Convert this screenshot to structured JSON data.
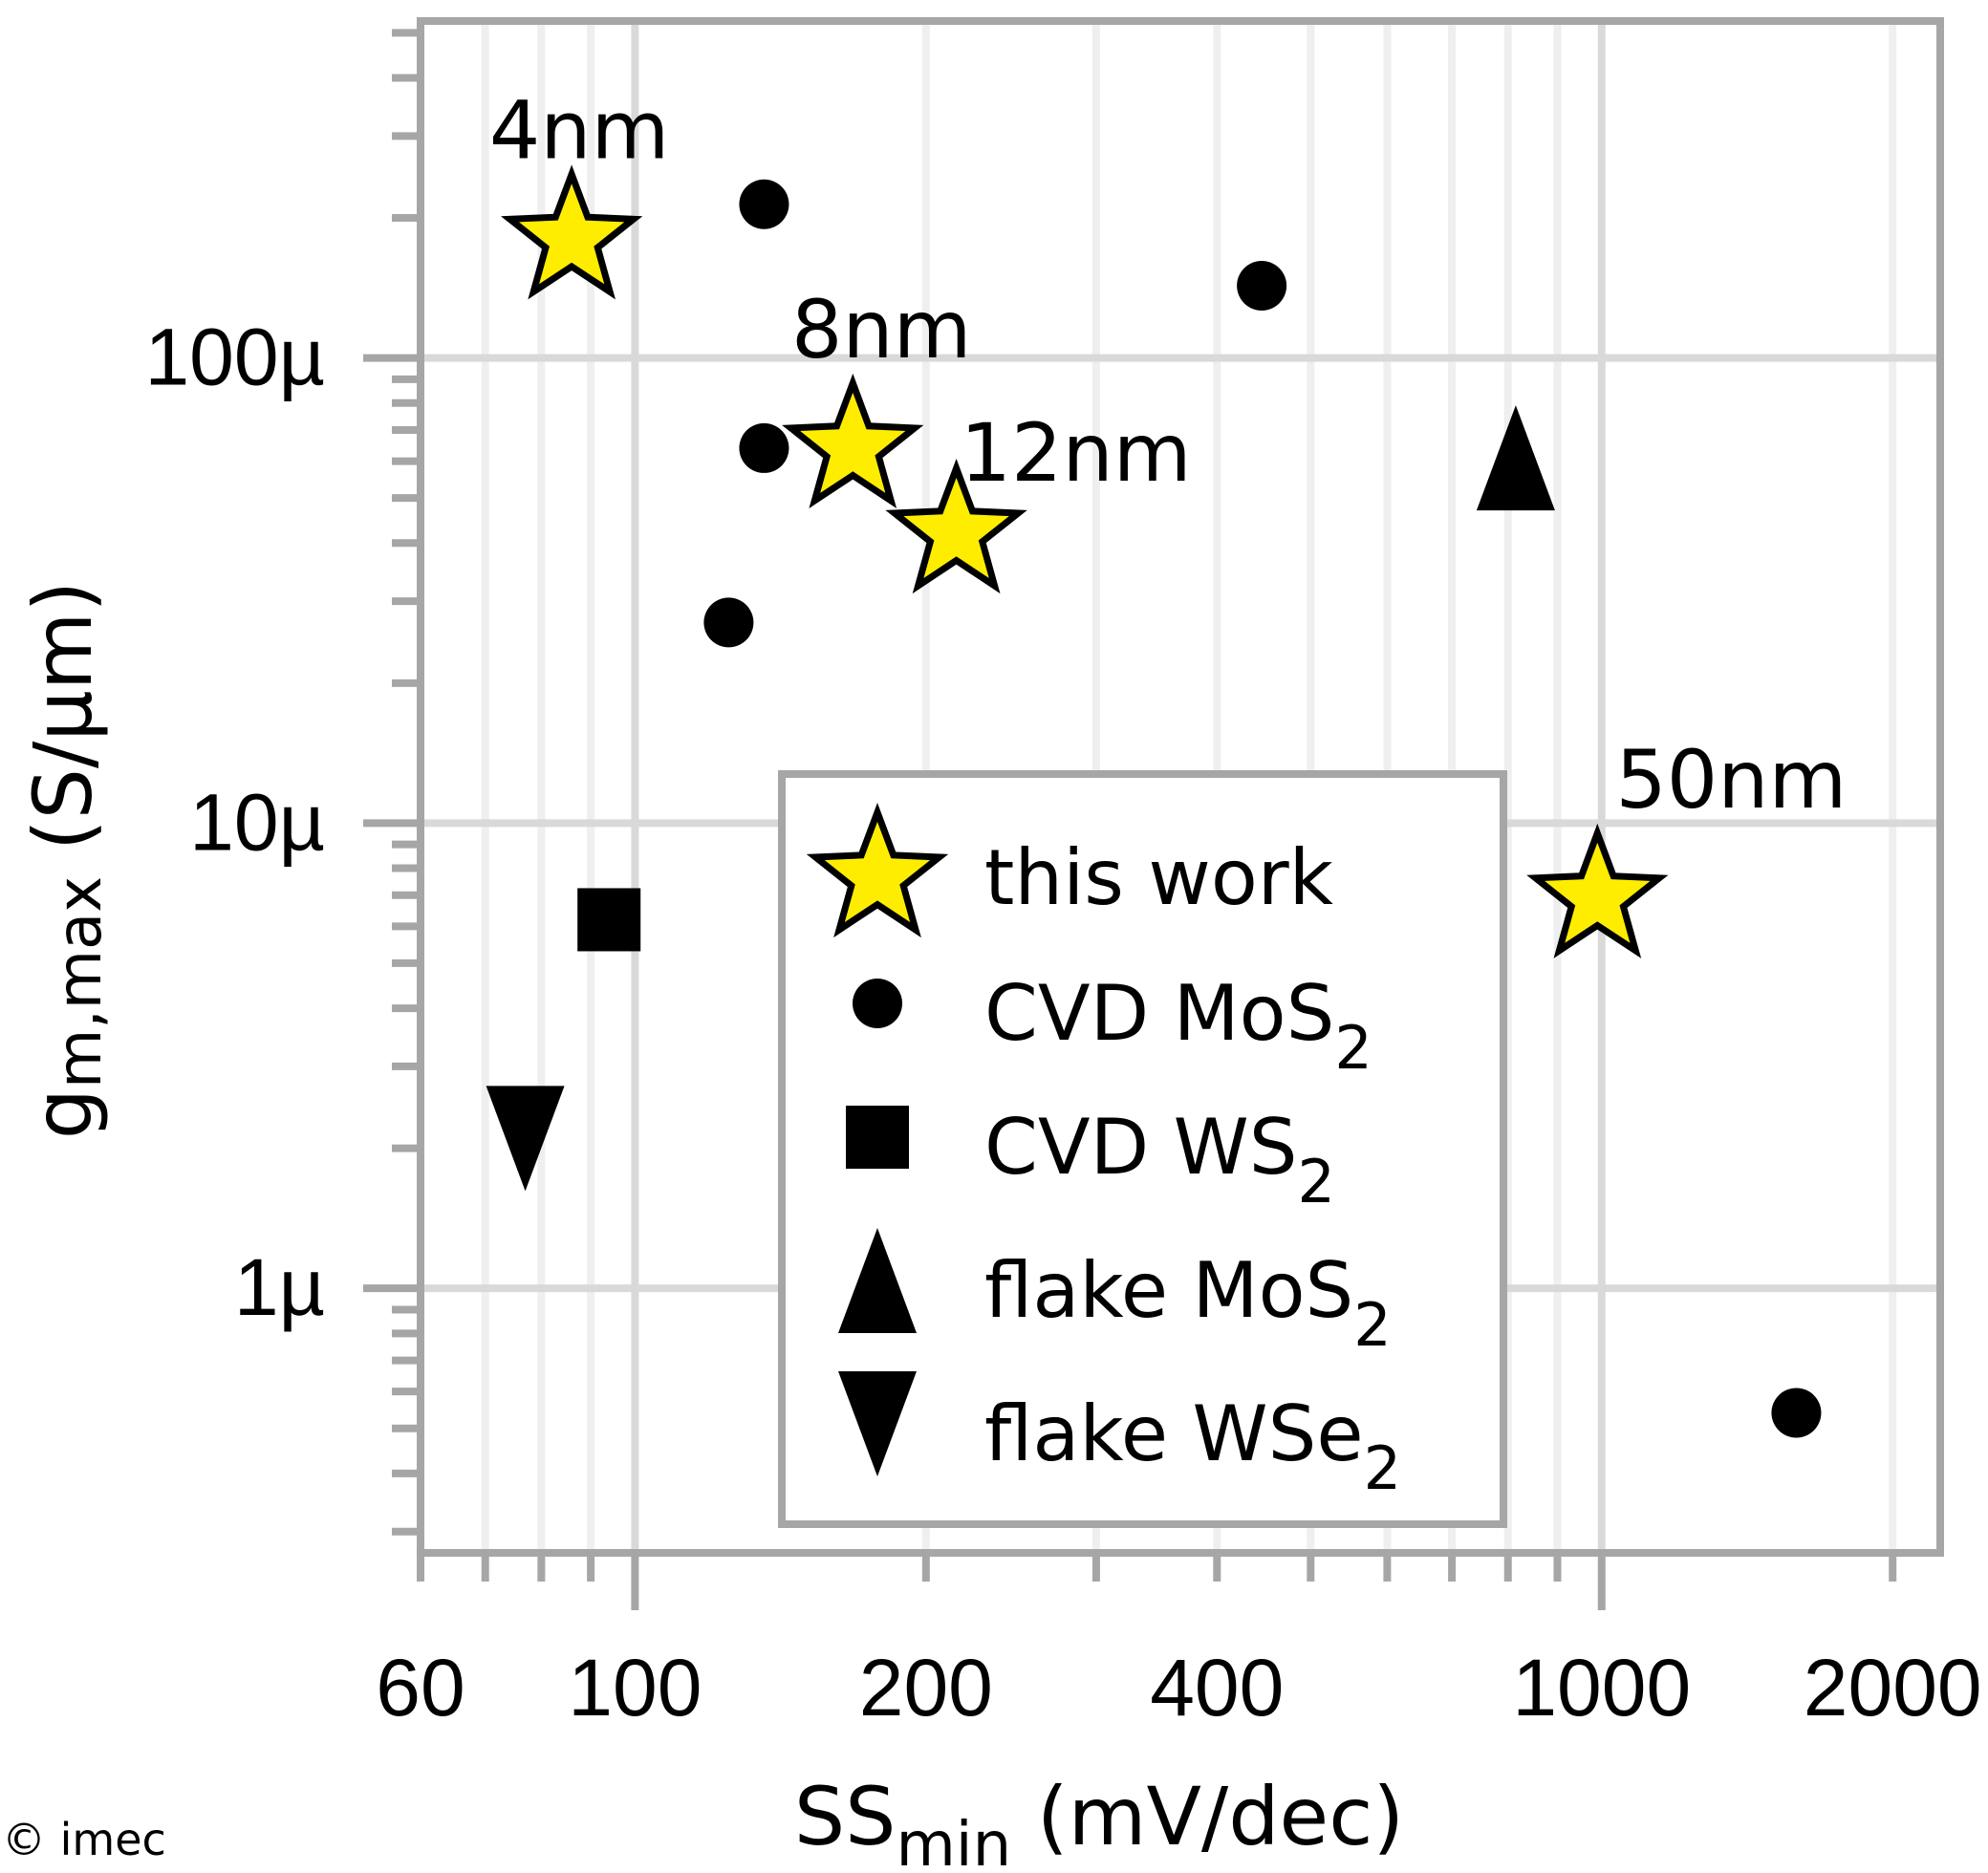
{
  "chart_data": {
    "type": "scatter",
    "title": "",
    "xlabel": "SS_min (mV/dec)",
    "xlabel_main": "SS",
    "xlabel_sub": "min",
    "xlabel_rest": " (mV/dec)",
    "ylabel": "g_m,max (S/µm)",
    "ylabel_main": "g",
    "ylabel_sub": "m,max",
    "ylabel_rest": " (S/µm)",
    "x_scale": "log",
    "y_scale": "log",
    "xlim": [
      60,
      2240
    ],
    "ylim": [
      2.7e-07,
      0.00053
    ],
    "x_ticks": [
      60,
      100,
      200,
      400,
      1000,
      2000
    ],
    "x_tick_labels": [
      "60",
      "100",
      "200",
      "400",
      "1000",
      "2000"
    ],
    "y_ticks": [
      1e-06,
      1e-05,
      0.0001
    ],
    "y_tick_labels": [
      "1µ",
      "10µ",
      "100µ"
    ],
    "grid": true,
    "legend_position": "inside center-right",
    "series": [
      {
        "name": "this work",
        "marker": "star",
        "color": "#FFED00",
        "edge": "#000000",
        "points": [
          {
            "x": 86,
            "y": 0.00018,
            "label": "4nm"
          },
          {
            "x": 168,
            "y": 6.4e-05,
            "label": "8nm"
          },
          {
            "x": 215,
            "y": 4.2e-05,
            "label": "12nm"
          },
          {
            "x": 990,
            "y": 6.9e-06,
            "label": "50nm"
          }
        ]
      },
      {
        "name": "CVD MoS2",
        "marker": "circle",
        "color": "#000000",
        "points": [
          {
            "x": 136,
            "y": 0.000214
          },
          {
            "x": 445,
            "y": 0.000143
          },
          {
            "x": 136,
            "y": 6.4e-05
          },
          {
            "x": 125,
            "y": 2.7e-05
          },
          {
            "x": 1590,
            "y": 5.4e-07
          }
        ]
      },
      {
        "name": "CVD WS2",
        "marker": "square",
        "color": "#000000",
        "points": [
          {
            "x": 94,
            "y": 6.2e-06
          }
        ]
      },
      {
        "name": "flake MoS2",
        "marker": "triangle-up",
        "color": "#000000",
        "points": [
          {
            "x": 815,
            "y": 6.1e-05
          }
        ]
      },
      {
        "name": "flake WSe2",
        "marker": "triangle-down",
        "color": "#000000",
        "points": [
          {
            "x": 77,
            "y": 2.1e-06
          }
        ]
      }
    ]
  },
  "legend": {
    "items": [
      {
        "main": "this work",
        "sub": ""
      },
      {
        "main": "CVD MoS",
        "sub": "2"
      },
      {
        "main": "CVD WS",
        "sub": "2"
      },
      {
        "main": "flake MoS",
        "sub": "2"
      },
      {
        "main": "flake WSe",
        "sub": "2"
      }
    ]
  },
  "colors": {
    "star_fill": "#FFED00",
    "axis": "#A6A6A6",
    "grid_major": "#D9D9D9",
    "grid_minor": "#EFEFEF"
  },
  "copyright": "© imec"
}
